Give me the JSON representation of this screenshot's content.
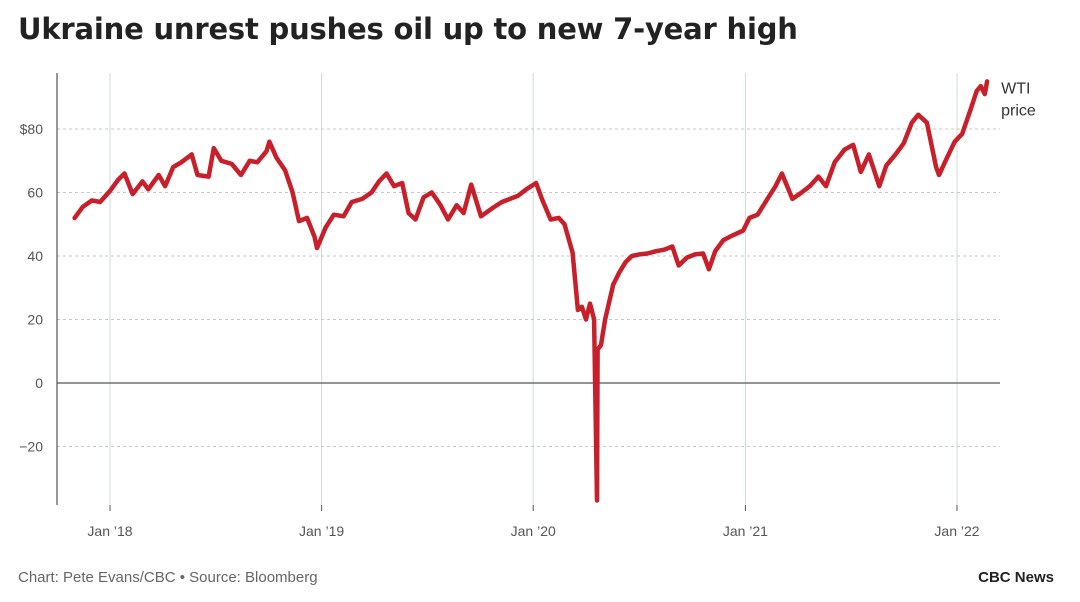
{
  "chart_data": {
    "type": "line",
    "title": "Ukraine unrest pushes oil up to new 7-year high",
    "series": [
      {
        "name": "WTI price",
        "label_lines": [
          "WTI",
          "price"
        ],
        "color": "#c8202a",
        "points": [
          [
            "2017-11-01",
            52
          ],
          [
            "2017-11-15",
            55.5
          ],
          [
            "2017-12-01",
            57.5
          ],
          [
            "2017-12-15",
            57
          ],
          [
            "2018-01-01",
            60.5
          ],
          [
            "2018-01-15",
            64
          ],
          [
            "2018-01-26",
            66
          ],
          [
            "2018-02-09",
            59.5
          ],
          [
            "2018-02-26",
            63.5
          ],
          [
            "2018-03-08",
            61
          ],
          [
            "2018-03-26",
            65.5
          ],
          [
            "2018-04-06",
            62
          ],
          [
            "2018-04-20",
            68
          ],
          [
            "2018-05-04",
            69.5
          ],
          [
            "2018-05-22",
            72
          ],
          [
            "2018-06-01",
            65.5
          ],
          [
            "2018-06-20",
            65
          ],
          [
            "2018-06-29",
            74
          ],
          [
            "2018-07-12",
            70
          ],
          [
            "2018-07-30",
            69
          ],
          [
            "2018-08-15",
            65.5
          ],
          [
            "2018-08-30",
            70
          ],
          [
            "2018-09-12",
            69.5
          ],
          [
            "2018-09-28",
            73
          ],
          [
            "2018-10-03",
            76
          ],
          [
            "2018-10-15",
            71
          ],
          [
            "2018-10-30",
            67
          ],
          [
            "2018-11-12",
            60
          ],
          [
            "2018-11-23",
            51
          ],
          [
            "2018-12-07",
            52
          ],
          [
            "2018-12-20",
            46
          ],
          [
            "2018-12-24",
            42.5
          ],
          [
            "2019-01-08",
            49
          ],
          [
            "2019-01-22",
            53
          ],
          [
            "2019-02-08",
            52.5
          ],
          [
            "2019-02-22",
            57
          ],
          [
            "2019-03-12",
            58
          ],
          [
            "2019-03-28",
            60
          ],
          [
            "2019-04-10",
            63.5
          ],
          [
            "2019-04-23",
            66
          ],
          [
            "2019-05-06",
            62
          ],
          [
            "2019-05-20",
            63
          ],
          [
            "2019-05-31",
            53.5
          ],
          [
            "2019-06-12",
            51.5
          ],
          [
            "2019-06-26",
            58.5
          ],
          [
            "2019-07-10",
            60
          ],
          [
            "2019-07-25",
            56
          ],
          [
            "2019-08-07",
            51.5
          ],
          [
            "2019-08-22",
            56
          ],
          [
            "2019-09-03",
            53.5
          ],
          [
            "2019-09-16",
            62.5
          ],
          [
            "2019-10-03",
            52.5
          ],
          [
            "2019-10-22",
            55
          ],
          [
            "2019-11-08",
            57
          ],
          [
            "2019-11-22",
            58
          ],
          [
            "2019-12-06",
            59
          ],
          [
            "2019-12-20",
            61
          ],
          [
            "2020-01-06",
            63
          ],
          [
            "2020-01-16",
            58
          ],
          [
            "2020-01-31",
            51.5
          ],
          [
            "2020-02-14",
            52
          ],
          [
            "2020-02-24",
            50
          ],
          [
            "2020-03-09",
            41
          ],
          [
            "2020-03-18",
            23
          ],
          [
            "2020-03-25",
            24
          ],
          [
            "2020-04-01",
            20
          ],
          [
            "2020-04-08",
            25
          ],
          [
            "2020-04-15",
            20
          ],
          [
            "2020-04-20",
            -37
          ],
          [
            "2020-04-21",
            10.5
          ],
          [
            "2020-04-27",
            12
          ],
          [
            "2020-05-04",
            20
          ],
          [
            "2020-05-18",
            31
          ],
          [
            "2020-05-29",
            35
          ],
          [
            "2020-06-08",
            38
          ],
          [
            "2020-06-19",
            40
          ],
          [
            "2020-07-02",
            40.5
          ],
          [
            "2020-07-16",
            40.8
          ],
          [
            "2020-07-31",
            41.5
          ],
          [
            "2020-08-14",
            42
          ],
          [
            "2020-08-28",
            43
          ],
          [
            "2020-09-08",
            37
          ],
          [
            "2020-09-22",
            39.5
          ],
          [
            "2020-10-06",
            40.5
          ],
          [
            "2020-10-20",
            40.8
          ],
          [
            "2020-10-30",
            35.8
          ],
          [
            "2020-11-10",
            41.5
          ],
          [
            "2020-11-24",
            45
          ],
          [
            "2020-12-10",
            46.5
          ],
          [
            "2020-12-28",
            48
          ],
          [
            "2021-01-08",
            52
          ],
          [
            "2021-01-22",
            53
          ],
          [
            "2021-02-08",
            58
          ],
          [
            "2021-02-22",
            62
          ],
          [
            "2021-03-05",
            66
          ],
          [
            "2021-03-23",
            58
          ],
          [
            "2021-04-08",
            60
          ],
          [
            "2021-04-22",
            62
          ],
          [
            "2021-05-07",
            65
          ],
          [
            "2021-05-20",
            62
          ],
          [
            "2021-06-04",
            69.5
          ],
          [
            "2021-06-21",
            73.5
          ],
          [
            "2021-07-06",
            75
          ],
          [
            "2021-07-19",
            66.5
          ],
          [
            "2021-08-02",
            72
          ],
          [
            "2021-08-20",
            62
          ],
          [
            "2021-09-01",
            68.5
          ],
          [
            "2021-09-17",
            72
          ],
          [
            "2021-10-01",
            75.5
          ],
          [
            "2021-10-15",
            82
          ],
          [
            "2021-10-26",
            84.5
          ],
          [
            "2021-11-10",
            82
          ],
          [
            "2021-11-26",
            68
          ],
          [
            "2021-12-01",
            65.5
          ],
          [
            "2021-12-15",
            71
          ],
          [
            "2021-12-28",
            76
          ],
          [
            "2022-01-10",
            78.5
          ],
          [
            "2022-01-26",
            87
          ],
          [
            "2022-02-04",
            92
          ],
          [
            "2022-02-11",
            93.5
          ],
          [
            "2022-02-18",
            91
          ],
          [
            "2022-02-22",
            95
          ]
        ]
      }
    ],
    "x": {
      "type": "date",
      "range": [
        "2017-10-01",
        "2022-02-28"
      ],
      "ticks": [
        {
          "date": "2018-01-01",
          "label": "Jan ’18"
        },
        {
          "date": "2019-01-01",
          "label": "Jan ’19"
        },
        {
          "date": "2020-01-01",
          "label": "Jan ’20"
        },
        {
          "date": "2021-01-01",
          "label": "Jan ’21"
        },
        {
          "date": "2022-01-01",
          "label": "Jan ’22"
        }
      ]
    },
    "y": {
      "range": [
        -38,
        98
      ],
      "ticks": [
        {
          "value": -20,
          "label": "−20"
        },
        {
          "value": 0,
          "label": "0"
        },
        {
          "value": 20,
          "label": "20"
        },
        {
          "value": 40,
          "label": "40"
        },
        {
          "value": 60,
          "label": "60"
        },
        {
          "value": 80,
          "label": "$80"
        }
      ]
    },
    "grid": {
      "horizontal": true,
      "horizontal_style": "dotted",
      "vertical": true
    },
    "colors": {
      "line": "#c8202a",
      "grid": "#c8c8c8",
      "vgrid": "#cfd8d8",
      "axis": "#555555",
      "zero_line": "#555555"
    }
  },
  "footer": {
    "credit": "Chart: Pete Evans/CBC • Source: Bloomberg",
    "brand": "CBC News"
  }
}
